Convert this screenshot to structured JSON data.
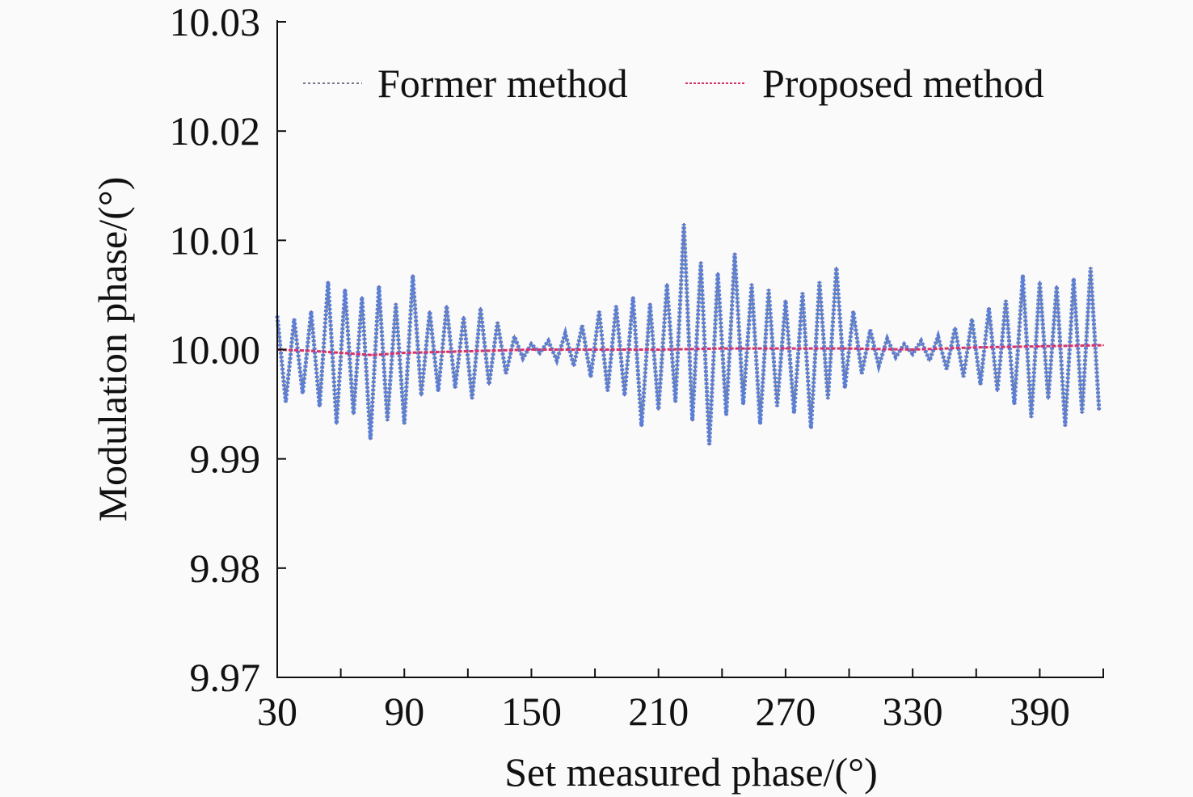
{
  "chart_data": {
    "type": "line",
    "title": "",
    "xlabel": "Set measured phase/(°)",
    "ylabel": "Modulation phase/(°)",
    "xlim": [
      30,
      420
    ],
    "ylim": [
      9.97,
      10.03
    ],
    "xticks": [
      30,
      90,
      150,
      210,
      270,
      330,
      390
    ],
    "xtick_labels": [
      "30",
      "90",
      "150",
      "210",
      "270",
      "330",
      "390"
    ],
    "yticks": [
      9.97,
      9.98,
      9.99,
      10.0,
      10.01,
      10.02,
      10.03
    ],
    "ytick_labels": [
      "9.97",
      "9.98",
      "9.99",
      "10.00",
      "10.01",
      "10.02",
      "10.03"
    ],
    "grid": false,
    "legend_position": "top",
    "series": [
      {
        "name": "Former method",
        "color": "#5b7fd6",
        "x": [
          30,
          34,
          38,
          42,
          46,
          50,
          54,
          58,
          62,
          66,
          70,
          74,
          78,
          82,
          86,
          90,
          94,
          98,
          102,
          106,
          110,
          114,
          118,
          122,
          126,
          130,
          134,
          138,
          142,
          146,
          150,
          154,
          158,
          162,
          166,
          170,
          174,
          178,
          182,
          186,
          190,
          194,
          198,
          202,
          206,
          210,
          214,
          218,
          222,
          226,
          230,
          234,
          238,
          242,
          246,
          250,
          254,
          258,
          262,
          266,
          270,
          274,
          278,
          282,
          286,
          290,
          294,
          298,
          302,
          306,
          310,
          314,
          318,
          322,
          326,
          330,
          334,
          338,
          342,
          346,
          350,
          354,
          358,
          362,
          366,
          370,
          374,
          378,
          382,
          386,
          390,
          394,
          398,
          402,
          406,
          410,
          414,
          418
        ],
        "y": [
          10.0031,
          9.9952,
          10.0028,
          9.996,
          10.0035,
          9.9948,
          10.0062,
          9.9932,
          10.0055,
          9.9941,
          10.0048,
          9.9918,
          10.0058,
          9.9935,
          10.0042,
          9.9932,
          10.0068,
          9.9958,
          10.0035,
          9.9962,
          10.004,
          9.9965,
          10.003,
          9.9955,
          10.0038,
          9.9968,
          10.0025,
          9.9978,
          10.0012,
          9.9992,
          10.0005,
          9.9997,
          10.0008,
          9.999,
          10.0015,
          9.9985,
          10.0022,
          9.9975,
          10.0035,
          9.9962,
          10.004,
          9.9958,
          10.0048,
          9.993,
          10.0042,
          9.9945,
          10.006,
          9.9952,
          10.0115,
          9.9935,
          10.008,
          9.9913,
          10.007,
          9.994,
          10.0088,
          9.995,
          10.006,
          9.9932,
          10.0055,
          9.9948,
          10.0045,
          9.9942,
          10.0052,
          9.9928,
          10.0062,
          9.9955,
          10.0075,
          9.9965,
          10.0035,
          9.9978,
          10.0018,
          9.9985,
          10.001,
          9.9993,
          10.0005,
          9.9996,
          10.0008,
          9.999,
          10.0012,
          9.9982,
          10.002,
          9.9975,
          10.0028,
          9.9968,
          10.0038,
          9.9962,
          10.0045,
          9.995,
          10.0068,
          9.9938,
          10.0062,
          9.9955,
          10.0058,
          9.993,
          10.0065,
          9.9942,
          10.0075,
          9.9945
        ]
      },
      {
        "name": "Proposed method",
        "color": "#d6336c",
        "x": [
          30,
          45,
          60,
          75,
          90,
          110,
          130,
          150,
          180,
          210,
          240,
          270,
          300,
          330,
          360,
          390,
          420
        ],
        "y": [
          10.0,
          9.9999,
          9.9997,
          9.9995,
          9.9997,
          9.9998,
          9.9999,
          10.0,
          10.0,
          10.0,
          10.0001,
          10.0001,
          10.0001,
          10.0,
          10.0002,
          10.0003,
          10.0004
        ]
      }
    ]
  }
}
